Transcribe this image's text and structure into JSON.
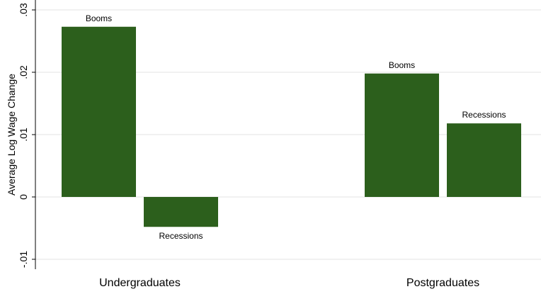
{
  "chart_data": {
    "type": "bar",
    "ylabel": "Average Log Wage Change",
    "ylim": [
      -0.012,
      0.032
    ],
    "yticks": [
      -0.01,
      0,
      0.01,
      0.02,
      0.03
    ],
    "ytick_labels": [
      "-.01",
      "0",
      ".01",
      ".02",
      ".03"
    ],
    "grid": true,
    "bar_color": "#2c5f1c",
    "groups": [
      {
        "label": "Undergraduates",
        "bars": [
          {
            "label": "Booms",
            "value": 0.0273
          },
          {
            "label": "Recessions",
            "value": -0.0048
          }
        ]
      },
      {
        "label": "Postgraduates",
        "bars": [
          {
            "label": "Booms",
            "value": 0.0198
          },
          {
            "label": "Recessions",
            "value": 0.0118
          }
        ]
      }
    ]
  }
}
